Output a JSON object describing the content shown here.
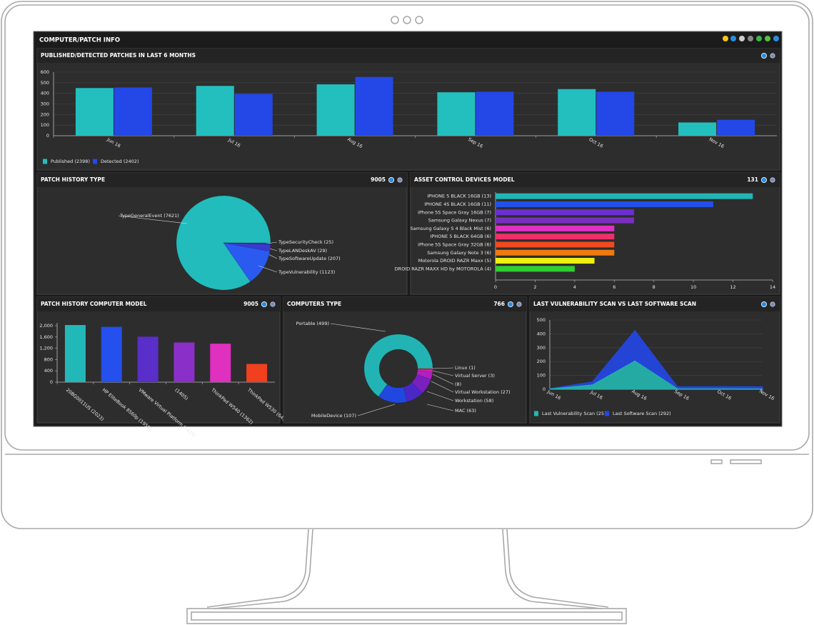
{
  "header": {
    "title": "COMPUTER/PATCH INFO"
  },
  "chart_data": [
    {
      "type": "bar",
      "title": "PUBLISHED/DETECTED PATCHES IN LAST 6 MONTHS",
      "categories": [
        "Jun 16",
        "Jul 16",
        "Aug 16",
        "Sep 16",
        "Oct 16",
        "Nov 16"
      ],
      "series": [
        {
          "name": "Published (2398)",
          "color": "#23bfbf",
          "values": [
            450,
            470,
            485,
            410,
            440,
            125
          ]
        },
        {
          "name": "Detected (2402)",
          "color": "#2447e8",
          "values": [
            455,
            395,
            555,
            415,
            415,
            150
          ]
        }
      ],
      "ylim": [
        0,
        600
      ],
      "yticks": [
        0,
        100,
        200,
        300,
        400,
        500,
        600
      ],
      "grid": true,
      "legend": "bottom-left"
    },
    {
      "type": "pie",
      "title": "PATCH HISTORY TYPE",
      "total": 9005,
      "labels": [
        "TypeGeneralEvent (7621)",
        "TypeSecurityCheck (25)",
        "TypeLANDeskAV (29)",
        "TypeSoftwareUpdate (207)",
        "TypeVulnerability (1123)"
      ],
      "values": [
        7621,
        25,
        29,
        207,
        1123
      ],
      "colors": [
        "#23bcbc",
        "#6a2dbd",
        "#4a30c0",
        "#3a3ad0",
        "#2a5af0"
      ]
    },
    {
      "type": "hbar",
      "title": "ASSET CONTROL DEVICES MODEL",
      "total": 131,
      "categories": [
        "IPHONE 5 BLACK 16GB (13)",
        "IPHONE 4S BLACK 16GB (11)",
        "iPhone 5S Space Gray 16GB (7)",
        "Samsung Galaxy Nexus (7)",
        "Samsung Galaxy S 4 Black Mist (6)",
        "IPHONE 5 BLACK 64GB (6)",
        "iPhone 5S Space Gray 32GB (6)",
        "Samsung Galaxy Note 3 (6)",
        "Motorola DROID RAZR Maxx (5)",
        "DROID RAZR MAXX HD by MOTOROLA (4)"
      ],
      "values": [
        13,
        11,
        7,
        7,
        6,
        6,
        6,
        6,
        5,
        4
      ],
      "colors": [
        "#23b5b5",
        "#2250e8",
        "#6a2fd0",
        "#7a2fc0",
        "#e030c8",
        "#f0306a",
        "#f04a20",
        "#f07a10",
        "#f0f010",
        "#30d030"
      ],
      "xlim": [
        0,
        14
      ],
      "xticks": [
        0,
        2,
        4,
        6,
        8,
        10,
        12,
        14
      ]
    },
    {
      "type": "bar",
      "title": "PATCH HISTORY COMPUTER MODEL",
      "total": 9005,
      "categories": [
        "20BG0011US (2023)",
        "HP EliteBook 8560p (1959)",
        "VMware Virtual Platform (1611)",
        "(1405)",
        "ThinkPad W540 (1362)",
        "ThinkPad W530 (645)"
      ],
      "values": [
        2023,
        1959,
        1611,
        1405,
        1362,
        645
      ],
      "colors": [
        "#23b8b8",
        "#2450ee",
        "#5a2ec8",
        "#8a30c8",
        "#e030c0",
        "#f04020"
      ],
      "ylim": [
        0,
        2100
      ],
      "yticks": [
        0,
        400,
        800,
        {
          "value": 1200,
          "label": "1,200"
        },
        {
          "value": 1600,
          "label": "1,600"
        },
        {
          "value": 2000,
          "label": "2,000"
        }
      ],
      "grid": false
    },
    {
      "type": "donut",
      "title": "COMPUTERS TYPE",
      "total": 766,
      "labels": [
        "Portable (499)",
        "Linux (1)",
        "Virtual Server (3)",
        "(8)",
        "Virtual Workstation (27)",
        "Workstation (58)",
        "MAC (63)",
        "MobileDevice (107)"
      ],
      "values": [
        499,
        1,
        3,
        8,
        27,
        58,
        63,
        107
      ],
      "colors": [
        "#22b4b4",
        "#f06010",
        "#e02040",
        "#e020b0",
        "#b020c0",
        "#7a20c0",
        "#4a28c8",
        "#2048e0"
      ]
    },
    {
      "type": "area",
      "title": "LAST VULNERABILITY SCAN VS LAST SOFTWARE SCAN",
      "stacked": true,
      "categories": [
        "Jun 16",
        "Jul 16",
        "Aug 16",
        "Sep 16",
        "Oct 16",
        "Nov 16"
      ],
      "series": [
        {
          "name": "Last Vulnerability Scan (251)",
          "color": "#23b8b0",
          "values": [
            3,
            32,
            205,
            4,
            4,
            3
          ]
        },
        {
          "name": "Last Software Scan (292)",
          "color": "#2447e8",
          "values": [
            3,
            22,
            220,
            15,
            16,
            16
          ]
        }
      ],
      "ylim": [
        0,
        500
      ],
      "yticks": [
        0,
        100,
        200,
        300,
        400,
        500
      ],
      "grid": true,
      "legend": "bottom-left"
    }
  ]
}
